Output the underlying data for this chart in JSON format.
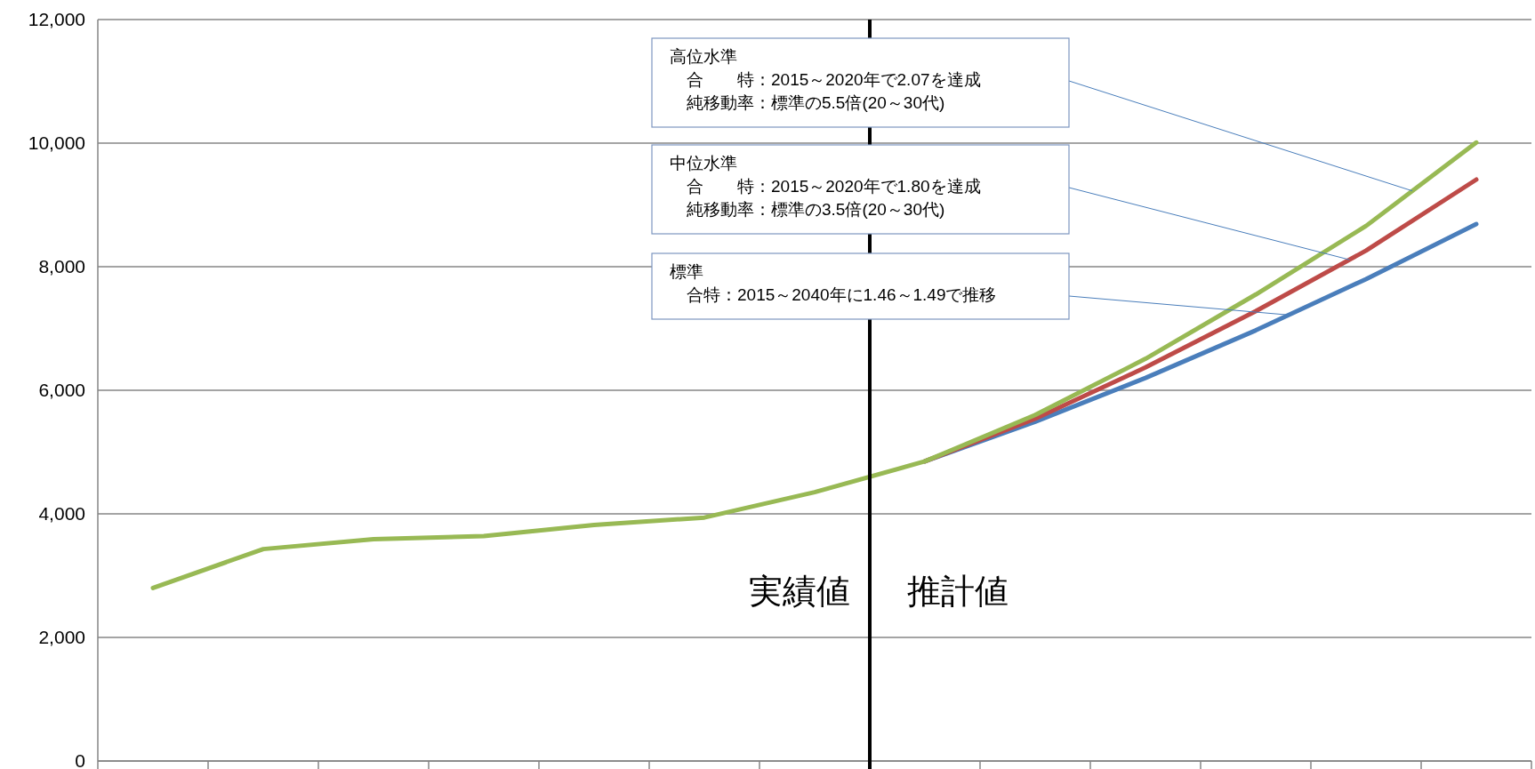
{
  "chart_data": {
    "type": "line",
    "categories": [
      null,
      null,
      null,
      null,
      null,
      null,
      null,
      null,
      null,
      null,
      null,
      null,
      null
    ],
    "ylim": [
      0,
      12000
    ],
    "yticks": [
      {
        "value": 0,
        "label": "0"
      },
      {
        "value": 2000,
        "label": "2,000"
      },
      {
        "value": 4000,
        "label": "4,000"
      },
      {
        "value": 6000,
        "label": "6,000"
      },
      {
        "value": 8000,
        "label": "8,000"
      },
      {
        "value": 10000,
        "label": "10,000"
      },
      {
        "value": 12000,
        "label": "12,000"
      }
    ],
    "grid": "y",
    "series": [
      {
        "color": "#4a7ebb",
        "values": [
          null,
          null,
          null,
          null,
          null,
          null,
          null,
          4850,
          5490,
          6200,
          6970,
          7800,
          8690
        ]
      },
      {
        "color": "#be4b48",
        "values": [
          null,
          null,
          null,
          null,
          null,
          null,
          null,
          4850,
          5540,
          6370,
          7280,
          8260,
          9410
        ]
      },
      {
        "color": "#98b954",
        "values": [
          2800,
          3430,
          3590,
          3640,
          3820,
          3940,
          4350,
          4850,
          5600,
          6510,
          7550,
          8660,
          10010
        ]
      }
    ],
    "annotations": [
      "高位水準",
      "合　　特：2015～2020年で2.07を達成",
      "純移動率：標準の5.5倍(20～30代)",
      "中位水準",
      "合　　特：2015～2020年で1.80を達成",
      "純移動率：標準の3.5倍(20～30代)",
      "標準",
      "合特：2015～2040年に1.46～1.49で推移",
      "実績値",
      "推計値"
    ]
  }
}
